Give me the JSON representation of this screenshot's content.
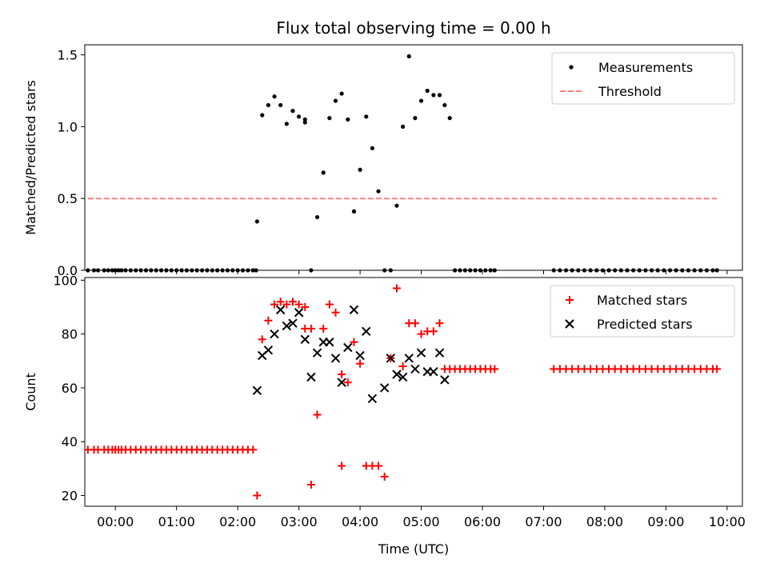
{
  "title": "Flux total observing time = 0.00 h",
  "colors": {
    "measurement": "#000000",
    "threshold": "#ff7f7f",
    "matched": "#ff0000",
    "predicted": "#000000"
  },
  "chart_data": [
    {
      "type": "scatter",
      "title": "Flux total observing time = 0.00 h",
      "xlabel": "",
      "ylabel": "Matched/Predicted stars",
      "xlim": [
        "-00:30",
        "10:15"
      ],
      "ylim": [
        0,
        1.57
      ],
      "yticks": [
        "0.0",
        "0.5",
        "1.0",
        "1.5"
      ],
      "ytick_values": [
        0,
        0.5,
        1.0,
        1.5
      ],
      "legend_position": "upper right",
      "legend": [
        {
          "label": "Measurements",
          "marker": "dot"
        },
        {
          "label": "Threshold",
          "marker": "dashed-line"
        }
      ],
      "series": [
        {
          "name": "Measurements",
          "marker": "dot",
          "x": [
            "-00:27",
            "-00:21",
            "-00:17",
            "-00:11",
            "-00:07",
            "-00:03",
            "00:00",
            "00:03",
            "00:06",
            "00:10",
            "00:15",
            "00:20",
            "00:25",
            "00:30",
            "00:35",
            "00:40",
            "00:45",
            "00:50",
            "00:55",
            "01:00",
            "01:05",
            "01:10",
            "01:15",
            "01:20",
            "01:25",
            "01:30",
            "01:35",
            "01:40",
            "01:45",
            "01:50",
            "01:55",
            "02:00",
            "02:05",
            "02:10",
            "02:15",
            "02:18",
            "02:19",
            "02:24",
            "02:30",
            "02:36",
            "02:42",
            "02:48",
            "02:54",
            "03:00",
            "03:06",
            "03:06",
            "03:12",
            "03:18",
            "03:24",
            "03:30",
            "03:36",
            "03:42",
            "03:48",
            "03:54",
            "04:00",
            "04:06",
            "04:12",
            "04:18",
            "04:24",
            "04:30",
            "04:36",
            "04:42",
            "04:48",
            "04:54",
            "05:00",
            "05:06",
            "05:12",
            "05:18",
            "05:23",
            "05:28",
            "05:33",
            "05:38",
            "05:43",
            "05:48",
            "05:53",
            "05:58",
            "06:03",
            "06:08",
            "06:12",
            "07:10",
            "07:16",
            "07:22",
            "07:28",
            "07:34",
            "07:40",
            "07:46",
            "07:52",
            "07:58",
            "08:04",
            "08:10",
            "08:16",
            "08:22",
            "08:28",
            "08:34",
            "08:40",
            "08:46",
            "08:52",
            "08:58",
            "09:04",
            "09:10",
            "09:16",
            "09:22",
            "09:28",
            "09:34",
            "09:40",
            "09:46",
            "09:50"
          ],
          "y": [
            0,
            0,
            0,
            0,
            0,
            0,
            0,
            0,
            0,
            0,
            0,
            0,
            0,
            0,
            0,
            0,
            0,
            0,
            0,
            0,
            0,
            0,
            0,
            0,
            0,
            0,
            0,
            0,
            0,
            0,
            0,
            0,
            0,
            0,
            0,
            0,
            0.34,
            1.08,
            1.15,
            1.21,
            1.15,
            1.02,
            1.11,
            1.07,
            1.03,
            1.05,
            0,
            0.37,
            0.68,
            1.06,
            1.18,
            1.23,
            1.05,
            0.41,
            0.7,
            1.07,
            0.85,
            0.55,
            0,
            0,
            0.45,
            1.0,
            1.49,
            1.06,
            1.18,
            1.25,
            1.22,
            1.22,
            1.15,
            1.06,
            0,
            0,
            0,
            0,
            0,
            0,
            0,
            0,
            0,
            0,
            0,
            0,
            0,
            0,
            0,
            0,
            0,
            0,
            0,
            0,
            0,
            0,
            0,
            0,
            0,
            0,
            0,
            0,
            0,
            0,
            0,
            0,
            0,
            0,
            0,
            0,
            0
          ]
        },
        {
          "name": "Threshold",
          "marker": "dashed-line",
          "x": [
            "-00:27",
            "09:50"
          ],
          "y": [
            0.5,
            0.5
          ]
        }
      ]
    },
    {
      "type": "scatter",
      "title": "",
      "xlabel": "Time (UTC)",
      "ylabel": "Count",
      "xlim": [
        "-00:30",
        "10:15"
      ],
      "ylim": [
        16,
        101
      ],
      "yticks": [
        "20",
        "40",
        "60",
        "80",
        "100"
      ],
      "ytick_values": [
        20,
        40,
        60,
        80,
        100
      ],
      "xticks": [
        "00:00",
        "01:00",
        "02:00",
        "03:00",
        "04:00",
        "05:00",
        "06:00",
        "07:00",
        "08:00",
        "09:00",
        "10:00"
      ],
      "legend_position": "upper right",
      "legend": [
        {
          "label": "Matched stars",
          "marker": "plus"
        },
        {
          "label": "Predicted stars",
          "marker": "x"
        }
      ],
      "series": [
        {
          "name": "Matched stars",
          "marker": "plus",
          "points": [
            [
              "-00:27",
              37
            ],
            [
              "-00:21",
              37
            ],
            [
              "-00:17",
              37
            ],
            [
              "-00:11",
              37
            ],
            [
              "-00:07",
              37
            ],
            [
              "-00:03",
              37
            ],
            [
              "00:00",
              37
            ],
            [
              "00:03",
              37
            ],
            [
              "00:06",
              37
            ],
            [
              "00:10",
              37
            ],
            [
              "00:15",
              37
            ],
            [
              "00:20",
              37
            ],
            [
              "00:25",
              37
            ],
            [
              "00:30",
              37
            ],
            [
              "00:35",
              37
            ],
            [
              "00:40",
              37
            ],
            [
              "00:45",
              37
            ],
            [
              "00:50",
              37
            ],
            [
              "00:55",
              37
            ],
            [
              "01:00",
              37
            ],
            [
              "01:05",
              37
            ],
            [
              "01:10",
              37
            ],
            [
              "01:15",
              37
            ],
            [
              "01:20",
              37
            ],
            [
              "01:25",
              37
            ],
            [
              "01:30",
              37
            ],
            [
              "01:35",
              37
            ],
            [
              "01:40",
              37
            ],
            [
              "01:45",
              37
            ],
            [
              "01:50",
              37
            ],
            [
              "01:55",
              37
            ],
            [
              "02:00",
              37
            ],
            [
              "02:05",
              37
            ],
            [
              "02:10",
              37
            ],
            [
              "02:15",
              37
            ],
            [
              "02:19",
              20
            ],
            [
              "02:24",
              78
            ],
            [
              "02:30",
              85
            ],
            [
              "02:36",
              91
            ],
            [
              "02:42",
              92
            ],
            [
              "02:48",
              91
            ],
            [
              "02:54",
              92
            ],
            [
              "03:00",
              91
            ],
            [
              "03:06",
              90
            ],
            [
              "03:06",
              82
            ],
            [
              "03:12",
              82
            ],
            [
              "03:12",
              24
            ],
            [
              "03:18",
              50
            ],
            [
              "03:24",
              82
            ],
            [
              "03:30",
              91
            ],
            [
              "03:36",
              88
            ],
            [
              "03:42",
              65
            ],
            [
              "03:48",
              62
            ],
            [
              "03:54",
              77
            ],
            [
              "04:00",
              69
            ],
            [
              "04:06",
              31
            ],
            [
              "04:12",
              31
            ],
            [
              "04:18",
              31
            ],
            [
              "04:24",
              27
            ],
            [
              "04:30",
              71
            ],
            [
              "04:36",
              97
            ],
            [
              "04:42",
              68
            ],
            [
              "04:48",
              84
            ],
            [
              "04:54",
              84
            ],
            [
              "05:00",
              80
            ],
            [
              "05:06",
              81
            ],
            [
              "05:12",
              81
            ],
            [
              "05:18",
              84
            ],
            [
              "03:42",
              31
            ],
            [
              "05:23",
              67
            ],
            [
              "05:28",
              67
            ],
            [
              "05:33",
              67
            ],
            [
              "05:38",
              67
            ],
            [
              "05:43",
              67
            ],
            [
              "05:48",
              67
            ],
            [
              "05:53",
              67
            ],
            [
              "05:58",
              67
            ],
            [
              "06:03",
              67
            ],
            [
              "06:08",
              67
            ],
            [
              "06:12",
              67
            ],
            [
              "07:10",
              67
            ],
            [
              "07:16",
              67
            ],
            [
              "07:22",
              67
            ],
            [
              "07:28",
              67
            ],
            [
              "07:34",
              67
            ],
            [
              "07:40",
              67
            ],
            [
              "07:46",
              67
            ],
            [
              "07:52",
              67
            ],
            [
              "07:58",
              67
            ],
            [
              "08:04",
              67
            ],
            [
              "08:10",
              67
            ],
            [
              "08:16",
              67
            ],
            [
              "08:22",
              67
            ],
            [
              "08:28",
              67
            ],
            [
              "08:34",
              67
            ],
            [
              "08:40",
              67
            ],
            [
              "08:46",
              67
            ],
            [
              "08:52",
              67
            ],
            [
              "08:58",
              67
            ],
            [
              "09:04",
              67
            ],
            [
              "09:10",
              67
            ],
            [
              "09:16",
              67
            ],
            [
              "09:22",
              67
            ],
            [
              "09:28",
              67
            ],
            [
              "09:34",
              67
            ],
            [
              "09:40",
              67
            ],
            [
              "09:46",
              67
            ],
            [
              "09:50",
              67
            ]
          ]
        },
        {
          "name": "Predicted stars",
          "marker": "x",
          "points": [
            [
              "02:19",
              59
            ],
            [
              "02:24",
              72
            ],
            [
              "02:30",
              74
            ],
            [
              "02:36",
              80
            ],
            [
              "02:42",
              89
            ],
            [
              "02:48",
              83
            ],
            [
              "02:54",
              84
            ],
            [
              "03:00",
              88
            ],
            [
              "03:06",
              78
            ],
            [
              "03:12",
              64
            ],
            [
              "03:18",
              73
            ],
            [
              "03:24",
              77
            ],
            [
              "03:30",
              77
            ],
            [
              "03:36",
              71
            ],
            [
              "03:42",
              62
            ],
            [
              "03:48",
              75
            ],
            [
              "03:54",
              89
            ],
            [
              "04:00",
              72
            ],
            [
              "04:06",
              81
            ],
            [
              "04:12",
              56
            ],
            [
              "04:24",
              60
            ],
            [
              "04:30",
              71
            ],
            [
              "04:36",
              65
            ],
            [
              "04:42",
              64
            ],
            [
              "04:48",
              71
            ],
            [
              "04:54",
              67
            ],
            [
              "05:00",
              73
            ],
            [
              "05:06",
              66
            ],
            [
              "05:12",
              66
            ],
            [
              "05:18",
              73
            ],
            [
              "05:23",
              63
            ]
          ]
        }
      ]
    }
  ]
}
